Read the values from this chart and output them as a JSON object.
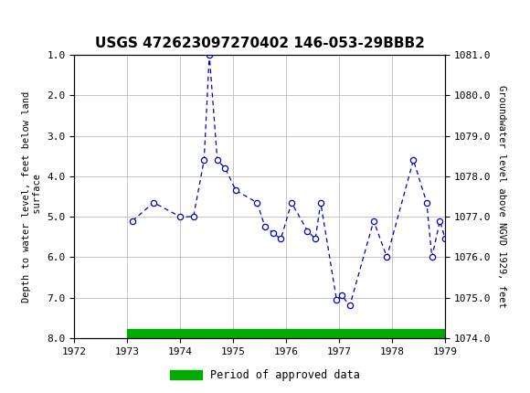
{
  "title": "USGS 472623097270402 146-053-29BBB2",
  "xlim": [
    1972,
    1979
  ],
  "ylim_left": [
    8.0,
    1.0
  ],
  "ylim_right": [
    1074.0,
    1081.0
  ],
  "xticks": [
    1972,
    1973,
    1974,
    1975,
    1976,
    1977,
    1978,
    1979
  ],
  "yticks_left": [
    1.0,
    2.0,
    3.0,
    4.0,
    5.0,
    6.0,
    7.0,
    8.0
  ],
  "yticks_right": [
    1074.0,
    1075.0,
    1076.0,
    1077.0,
    1078.0,
    1079.0,
    1080.0,
    1081.0
  ],
  "data_x": [
    1973.1,
    1973.5,
    1974.0,
    1974.25,
    1974.45,
    1974.55,
    1974.7,
    1974.85,
    1975.05,
    1975.45,
    1975.6,
    1975.75,
    1975.9,
    1976.1,
    1976.4,
    1976.55,
    1976.65,
    1976.95,
    1977.05,
    1977.2,
    1977.65,
    1977.9,
    1978.4,
    1978.65,
    1978.75,
    1978.9,
    1979.0
  ],
  "data_y": [
    5.1,
    4.65,
    5.0,
    5.0,
    3.6,
    1.0,
    3.6,
    3.8,
    4.35,
    4.65,
    5.25,
    5.4,
    5.55,
    4.65,
    5.35,
    5.55,
    4.65,
    7.05,
    6.95,
    7.2,
    5.1,
    6.0,
    3.6,
    4.65,
    6.0,
    5.1,
    5.55
  ],
  "line_color": "#0000bb",
  "marker_color": "#0000bb",
  "marker_facecolor": "white",
  "approved_bar_color": "#00aa00",
  "approved_bar_xstart": 1973.0,
  "approved_bar_xend": 1979.0,
  "header_bg_color": "#1a6b3c",
  "grid_color": "#bbbbbb",
  "legend_label": "Period of approved data",
  "left_ylabel": "Depth to water level, feet below land\n surface",
  "right_ylabel": "Groundwater level above NGVD 1929, feet"
}
